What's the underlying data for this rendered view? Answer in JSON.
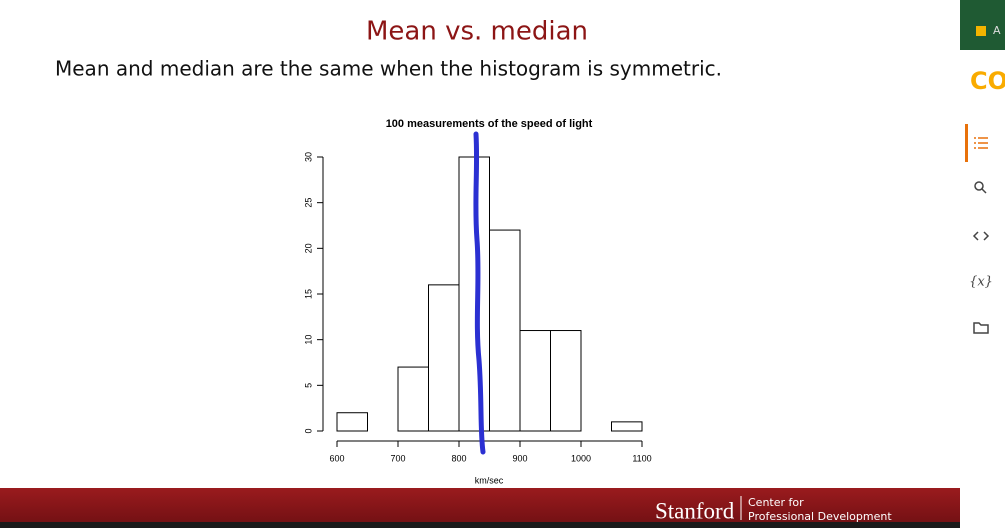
{
  "slide": {
    "title": "Mean vs. median",
    "subtitle": "Mean and median are the same when the histogram is symmetric."
  },
  "chart_data": {
    "type": "histogram",
    "title": "100 measurements of the speed of light",
    "x_label": "km/sec",
    "bins": [
      600,
      650,
      700,
      750,
      800,
      850,
      900,
      950,
      1000,
      1050,
      1100
    ],
    "values": [
      2,
      0,
      7,
      16,
      30,
      22,
      11,
      11,
      0,
      1
    ],
    "color": "#ffffff",
    "xlim": [
      600,
      1100
    ],
    "xticks": [
      600,
      700,
      800,
      900,
      1000,
      1100
    ],
    "ylim": [
      0,
      30
    ],
    "yticks": [
      0,
      5,
      10,
      15,
      20,
      25,
      30
    ]
  },
  "footer": {
    "brand": "Stanford",
    "line1": "Center for",
    "line2": "Professional Development"
  },
  "sidebar": {
    "label": "A",
    "logo": "CO",
    "variables": "{x}"
  }
}
